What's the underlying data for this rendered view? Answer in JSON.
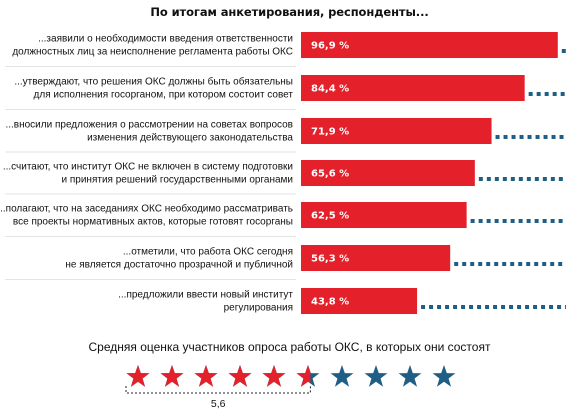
{
  "title": "По итогам анкетирования, респонденты...",
  "colors": {
    "bar": "#e4202b",
    "remainder": "#1f5f86",
    "text": "#111111",
    "divider": "#c8c8c8"
  },
  "chart_data": [
    {
      "type": "bar",
      "orientation": "horizontal",
      "title": "По итогам анкетирования, респонденты...",
      "xlim": [
        0,
        100
      ],
      "unit": "%",
      "categories": [
        [
          "...заявили о необходимости введения  ответственности",
          "должностных лиц  за неисполнение регламента работы ОКС"
        ],
        [
          "...утверждают, что решения ОКС должны быть обязательны",
          "для исполнения госорганом, при котором состоит совет"
        ],
        [
          "...вносили предложения  о рассмотрении на советах вопросов",
          "изменения действующего законодательства"
        ],
        [
          "...считают, что институт ОКС не включен в систему подготовки",
          "и принятия решений государственными органами"
        ],
        [
          "...полагают, что на заседаниях ОКС необходимо рассматривать",
          "все проекты нормативных актов, которые готовят госорганы"
        ],
        [
          "...отметили, что работа ОКС сегодня",
          "не является достаточно  прозрачной и публичной"
        ],
        [
          "...предложили ввести новый институт",
          "регулирования"
        ]
      ],
      "values": [
        96.9,
        84.4,
        71.9,
        65.6,
        62.5,
        56.3,
        43.8
      ],
      "value_labels": [
        "96,9 %",
        "84,4 %",
        "71,9 %",
        "65,6 %",
        "62,5 %",
        "56,3 %",
        "43,8 %"
      ]
    },
    {
      "type": "rating",
      "title": "Средняя оценка участников опроса работы ОКС, в которых они состоят",
      "value": 5.6,
      "value_label": "5,6",
      "max": 10
    }
  ]
}
